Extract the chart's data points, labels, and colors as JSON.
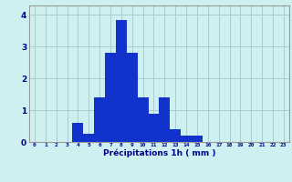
{
  "categories": [
    0,
    1,
    2,
    3,
    4,
    5,
    6,
    7,
    8,
    9,
    10,
    11,
    12,
    13,
    14,
    15,
    16,
    17,
    18,
    19,
    20,
    21,
    22,
    23
  ],
  "values": [
    0,
    0,
    0,
    0,
    0.6,
    0.25,
    1.4,
    2.8,
    3.85,
    2.8,
    1.4,
    0.9,
    1.4,
    0.4,
    0.2,
    0.2,
    0,
    0,
    0,
    0,
    0,
    0,
    0,
    0
  ],
  "bar_color": "#1133cc",
  "background_color": "#cff0f0",
  "grid_color": "#aacccc",
  "xlabel": "Précipitations 1h ( mm )",
  "xlabel_color": "#000088",
  "tick_color": "#000088",
  "ylim": [
    0,
    4.3
  ],
  "yticks": [
    0,
    1,
    2,
    3,
    4
  ],
  "bar_width": 1.0,
  "xlim": [
    -0.5,
    23.5
  ]
}
